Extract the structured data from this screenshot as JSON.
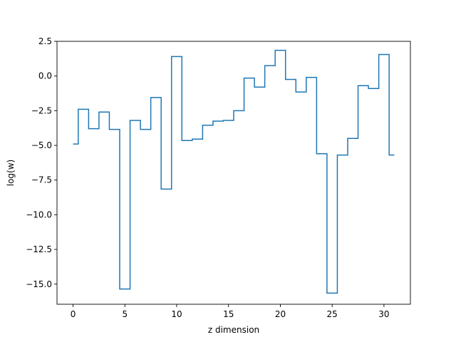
{
  "chart_data": {
    "type": "line",
    "drawstyle": "steps-mid",
    "title": "",
    "xlabel": "z dimension",
    "ylabel": "log(w)",
    "xlim": [
      -1.55,
      32.55
    ],
    "ylim": [
      -16.45,
      2.5
    ],
    "xticks": [
      0,
      5,
      10,
      15,
      20,
      25,
      30
    ],
    "xtick_labels": [
      "0",
      "5",
      "10",
      "15",
      "20",
      "25",
      "30"
    ],
    "yticks": [
      2.5,
      0.0,
      -2.5,
      -5.0,
      -7.5,
      -10.0,
      -12.5,
      -15.0
    ],
    "ytick_labels": [
      "2.5",
      "0.0",
      "−2.5",
      "−5.0",
      "−7.5",
      "−10.0",
      "−12.5",
      "−15.0"
    ],
    "grid": false,
    "legend": false,
    "series": [
      {
        "color": "#1f77b4",
        "x": [
          0,
          1,
          2,
          3,
          4,
          5,
          6,
          7,
          8,
          9,
          10,
          11,
          12,
          13,
          14,
          15,
          16,
          17,
          18,
          19,
          20,
          21,
          22,
          23,
          24,
          25,
          26,
          27,
          28,
          29,
          30,
          31
        ],
        "y": [
          -4.9,
          -2.4,
          -3.8,
          -2.6,
          -3.85,
          -15.35,
          -3.2,
          -3.85,
          -1.55,
          -8.15,
          1.4,
          -4.65,
          -4.55,
          -3.55,
          -3.25,
          -3.2,
          -2.5,
          -0.15,
          -0.8,
          0.75,
          1.85,
          -0.25,
          -1.15,
          -0.1,
          -5.6,
          -15.65,
          -5.7,
          -4.5,
          -0.7,
          -0.9,
          1.55,
          -5.7
        ]
      }
    ]
  }
}
